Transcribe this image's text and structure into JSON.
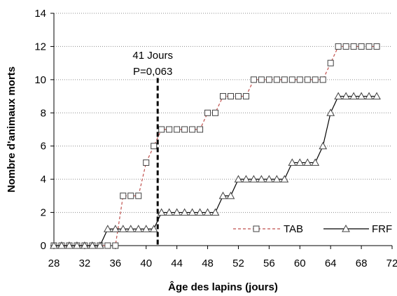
{
  "chart_data": {
    "type": "line",
    "xlabel": "Âge des lapins (jours)",
    "ylabel": "Nombre d'animaux morts",
    "xlim": [
      28,
      72
    ],
    "ylim": [
      0,
      14
    ],
    "x_ticks": [
      28,
      32,
      36,
      40,
      44,
      48,
      52,
      56,
      60,
      64,
      68,
      72
    ],
    "y_ticks": [
      0,
      2,
      4,
      6,
      8,
      10,
      12,
      14
    ],
    "grid": "horizontal dotted",
    "legend_position": "bottom-right",
    "series": [
      {
        "name": "TAB",
        "color": "#c0504d",
        "line_style": "dashed",
        "marker": "square",
        "x": [
          28,
          29,
          30,
          31,
          32,
          33,
          34,
          35,
          36,
          37,
          38,
          39,
          40,
          41,
          42,
          43,
          44,
          45,
          46,
          47,
          48,
          49,
          50,
          51,
          52,
          53,
          54,
          55,
          56,
          57,
          58,
          59,
          60,
          61,
          62,
          63,
          64,
          65,
          66,
          67,
          68,
          69,
          70
        ],
        "y": [
          0,
          0,
          0,
          0,
          0,
          0,
          0,
          0,
          0,
          3,
          3,
          3,
          5,
          6,
          7,
          7,
          7,
          7,
          7,
          7,
          8,
          8,
          9,
          9,
          9,
          9,
          10,
          10,
          10,
          10,
          10,
          10,
          10,
          10,
          10,
          10,
          11,
          12,
          12,
          12,
          12,
          12,
          12
        ]
      },
      {
        "name": "FRF",
        "color": "#000000",
        "line_style": "solid",
        "marker": "triangle",
        "x": [
          28,
          29,
          30,
          31,
          32,
          33,
          34,
          35,
          36,
          37,
          38,
          39,
          40,
          41,
          42,
          43,
          44,
          45,
          46,
          47,
          48,
          49,
          50,
          51,
          52,
          53,
          54,
          55,
          56,
          57,
          58,
          59,
          60,
          61,
          62,
          63,
          64,
          65,
          66,
          67,
          68,
          69,
          70
        ],
        "y": [
          0,
          0,
          0,
          0,
          0,
          0,
          0,
          1,
          1,
          1,
          1,
          1,
          1,
          1,
          2,
          2,
          2,
          2,
          2,
          2,
          2,
          2,
          3,
          3,
          4,
          4,
          4,
          4,
          4,
          4,
          4,
          5,
          5,
          5,
          5,
          6,
          8,
          9,
          9,
          9,
          9,
          9,
          9
        ]
      }
    ],
    "annotations": [
      {
        "x": 41.5,
        "text_line1": "41 Jours",
        "text_line2": "P=0,063",
        "line_style": "dashed vertical"
      }
    ]
  }
}
